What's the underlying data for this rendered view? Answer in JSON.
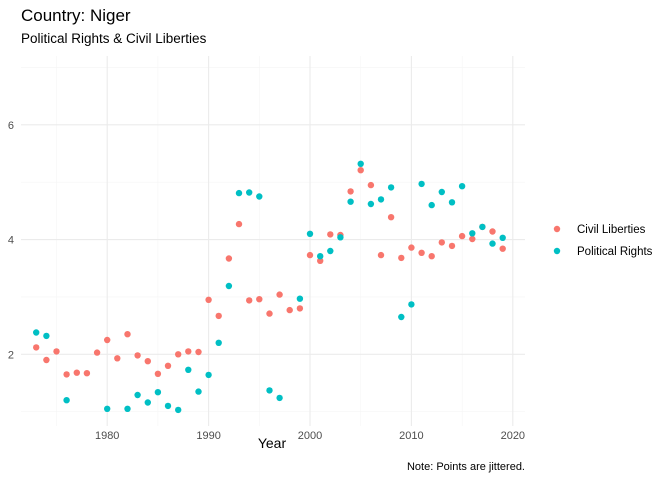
{
  "title": "Country: Niger",
  "subtitle": "Political Rights & Civil Liberties",
  "caption": "Note: Points are jittered.",
  "colors": {
    "civil_liberties": "#F8766D",
    "political_rights": "#00BFC4",
    "grid_major": "#EBEBEB",
    "grid_minor": "#F5F5F5"
  },
  "chart_data": {
    "type": "scatter",
    "title": "Country: Niger",
    "subtitle": "Political Rights & Civil Liberties",
    "xlabel": "Year",
    "ylabel": "",
    "xlim": [
      1971.5,
      2021.2
    ],
    "ylim": [
      0.75,
      7.2
    ],
    "x_ticks": [
      1980,
      1990,
      2000,
      2010,
      2020
    ],
    "y_ticks": [
      2,
      4,
      6
    ],
    "grid": true,
    "legend_position": "right",
    "series": [
      {
        "name": "Civil Liberties",
        "color": "#F8766D",
        "points": [
          [
            1973,
            2.12
          ],
          [
            1974,
            1.9
          ],
          [
            1975,
            2.05
          ],
          [
            1976,
            1.65
          ],
          [
            1977,
            1.68
          ],
          [
            1978,
            1.67
          ],
          [
            1979,
            2.03
          ],
          [
            1980,
            2.25
          ],
          [
            1981,
            1.93
          ],
          [
            1982,
            2.35
          ],
          [
            1983,
            1.98
          ],
          [
            1984,
            1.88
          ],
          [
            1985,
            1.66
          ],
          [
            1986,
            1.8
          ],
          [
            1987,
            2.0
          ],
          [
            1988,
            2.05
          ],
          [
            1989,
            2.04
          ],
          [
            1990,
            2.95
          ],
          [
            1991,
            2.67
          ],
          [
            1992,
            3.67
          ],
          [
            1993,
            4.27
          ],
          [
            1994,
            2.94
          ],
          [
            1995,
            2.96
          ],
          [
            1996,
            2.71
          ],
          [
            1997,
            3.04
          ],
          [
            1998,
            2.77
          ],
          [
            1999,
            2.8
          ],
          [
            2000,
            3.73
          ],
          [
            2001,
            3.63
          ],
          [
            2002,
            4.09
          ],
          [
            2003,
            4.08
          ],
          [
            2004,
            4.84
          ],
          [
            2005,
            5.21
          ],
          [
            2006,
            4.95
          ],
          [
            2007,
            3.73
          ],
          [
            2008,
            4.39
          ],
          [
            2009,
            3.68
          ],
          [
            2010,
            3.86
          ],
          [
            2011,
            3.77
          ],
          [
            2012,
            3.71
          ],
          [
            2013,
            3.95
          ],
          [
            2014,
            3.89
          ],
          [
            2015,
            4.06
          ],
          [
            2016,
            4.01
          ],
          [
            2017,
            4.22
          ],
          [
            2018,
            4.14
          ],
          [
            2019,
            3.84
          ]
        ]
      },
      {
        "name": "Political Rights",
        "color": "#00BFC4",
        "points": [
          [
            1973,
            2.38
          ],
          [
            1974,
            2.32
          ],
          [
            1976,
            1.2
          ],
          [
            1980,
            1.05
          ],
          [
            1982,
            1.05
          ],
          [
            1983,
            1.29
          ],
          [
            1984,
            1.16
          ],
          [
            1985,
            1.34
          ],
          [
            1986,
            1.1
          ],
          [
            1987,
            1.03
          ],
          [
            1988,
            1.73
          ],
          [
            1989,
            1.35
          ],
          [
            1990,
            1.64
          ],
          [
            1991,
            2.2
          ],
          [
            1992,
            3.19
          ],
          [
            1993,
            4.81
          ],
          [
            1994,
            4.82
          ],
          [
            1995,
            4.75
          ],
          [
            1996,
            1.37
          ],
          [
            1997,
            1.24
          ],
          [
            1999,
            2.97
          ],
          [
            2000,
            4.1
          ],
          [
            2001,
            3.71
          ],
          [
            2002,
            3.8
          ],
          [
            2003,
            4.04
          ],
          [
            2004,
            4.66
          ],
          [
            2005,
            5.32
          ],
          [
            2006,
            4.62
          ],
          [
            2007,
            4.7
          ],
          [
            2008,
            4.91
          ],
          [
            2009,
            2.65
          ],
          [
            2010,
            2.87
          ],
          [
            2011,
            4.97
          ],
          [
            2012,
            4.6
          ],
          [
            2013,
            4.83
          ],
          [
            2014,
            4.65
          ],
          [
            2015,
            4.93
          ],
          [
            2016,
            4.11
          ],
          [
            2017,
            4.22
          ],
          [
            2018,
            3.93
          ],
          [
            2019,
            4.03
          ]
        ]
      }
    ]
  }
}
